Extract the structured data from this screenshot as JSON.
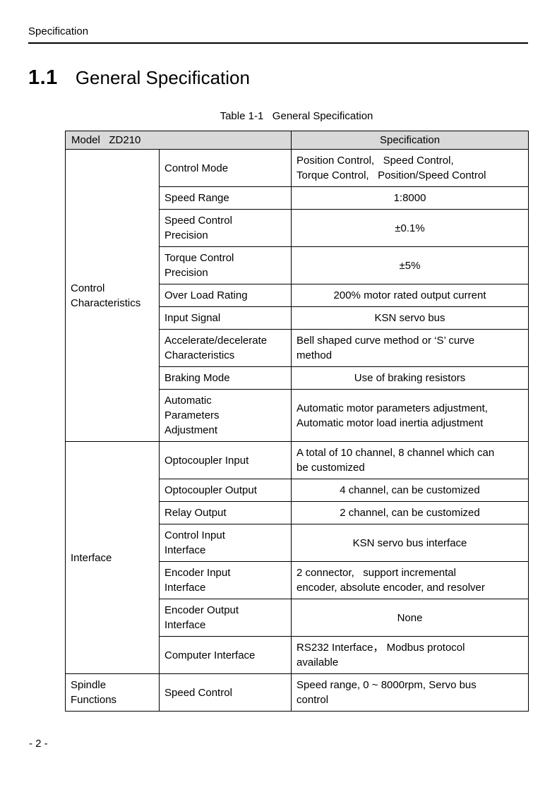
{
  "page_header": {
    "title": "Specification"
  },
  "heading": {
    "number": "1.1",
    "title": "General Specification"
  },
  "table": {
    "caption": "Table 1-1   General Specification",
    "header": {
      "model": "Model   ZD210",
      "specification": "Specification"
    },
    "groups": [
      {
        "label": "Control\nCharacteristics",
        "rows": [
          {
            "item": "Control Mode",
            "value": "Position Control,   Speed Control,\nTorque Control,   Position/Speed Control",
            "align": "left"
          },
          {
            "item": "Speed Range",
            "value": "1:8000",
            "align": "center"
          },
          {
            "item": "Speed Control\nPrecision",
            "value": "±0.1%",
            "align": "center"
          },
          {
            "item": "Torque Control\nPrecision",
            "value": "±5%",
            "align": "center"
          },
          {
            "item": "Over Load Rating",
            "value": "200% motor rated output current",
            "align": "center"
          },
          {
            "item": "Input Signal",
            "value": "KSN servo bus",
            "align": "center"
          },
          {
            "item": "Accelerate/decelerate\nCharacteristics",
            "value": "Bell shaped curve method or ‘S’ curve\nmethod",
            "align": "left"
          },
          {
            "item": "Braking Mode",
            "value": "Use of braking resistors",
            "align": "center"
          },
          {
            "item": "Automatic\nParameters\nAdjustment",
            "value": "Automatic motor parameters adjustment,\nAutomatic motor load inertia adjustment",
            "align": "left"
          }
        ]
      },
      {
        "label": "Interface",
        "rows": [
          {
            "item": "Optocoupler Input",
            "value": "A total of 10 channel, 8 channel which can\nbe customized",
            "align": "left"
          },
          {
            "item": "Optocoupler Output",
            "value": "4 channel, can be customized",
            "align": "center"
          },
          {
            "item": "Relay Output",
            "value": "2 channel, can be customized",
            "align": "center"
          },
          {
            "item": "Control Input\nInterface",
            "value": "KSN servo bus interface",
            "align": "center"
          },
          {
            "item": "Encoder Input\nInterface",
            "value": "2 connector,   support incremental\nencoder, absolute encoder, and resolver",
            "align": "left"
          },
          {
            "item": "Encoder Output\nInterface",
            "value": "None",
            "align": "center"
          },
          {
            "item": "Computer Interface",
            "value": "RS232 Interface， Modbus protocol\navailable",
            "align": "left"
          }
        ]
      },
      {
        "label": "Spindle\nFunctions",
        "rows": [
          {
            "item": "Speed Control",
            "value": "Speed range, 0 ~ 8000rpm, Servo bus\ncontrol",
            "align": "left"
          }
        ]
      }
    ]
  },
  "footer": {
    "page_number": "- 2 -"
  }
}
